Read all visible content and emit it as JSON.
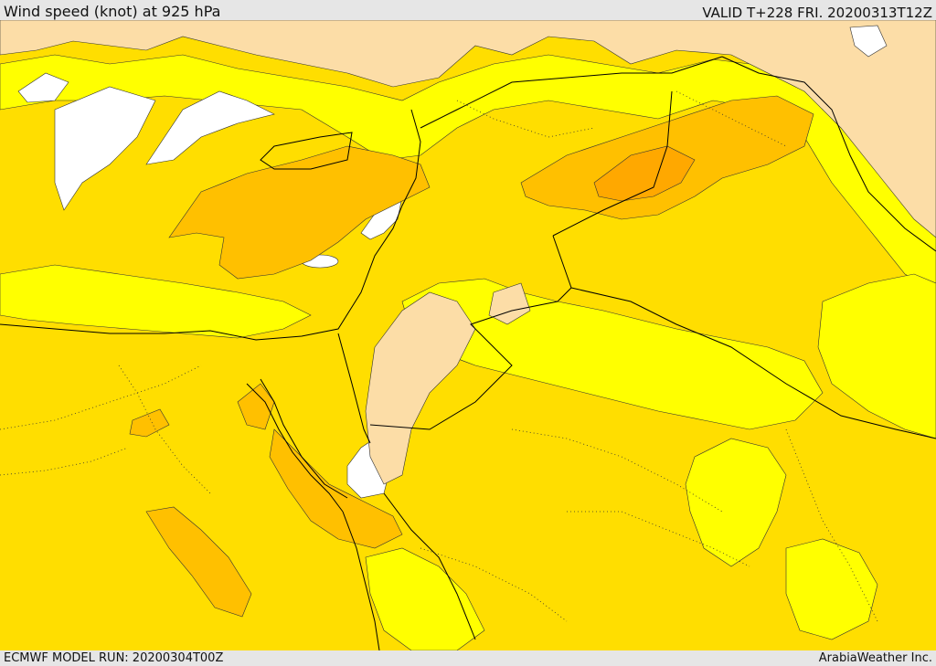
{
  "header": {
    "title": "Wind speed (knot) at 925 hPa",
    "valid": "VALID T+228 FRI. 20200313T12Z"
  },
  "footer": {
    "model_run": "ECMWF MODEL RUN: 20200304T00Z",
    "credit": "ArabiaWeather Inc."
  },
  "map": {
    "field": "wind speed at 925 hPa",
    "colors": {
      "land_tan": "#fcdda7",
      "calm_white": "#ffffff",
      "low_yellow": "#ffff00",
      "mid_yellow": "#ffde00",
      "high_amber": "#ffc000",
      "peak_orange": "#ffa800",
      "borders": "#000000"
    }
  }
}
